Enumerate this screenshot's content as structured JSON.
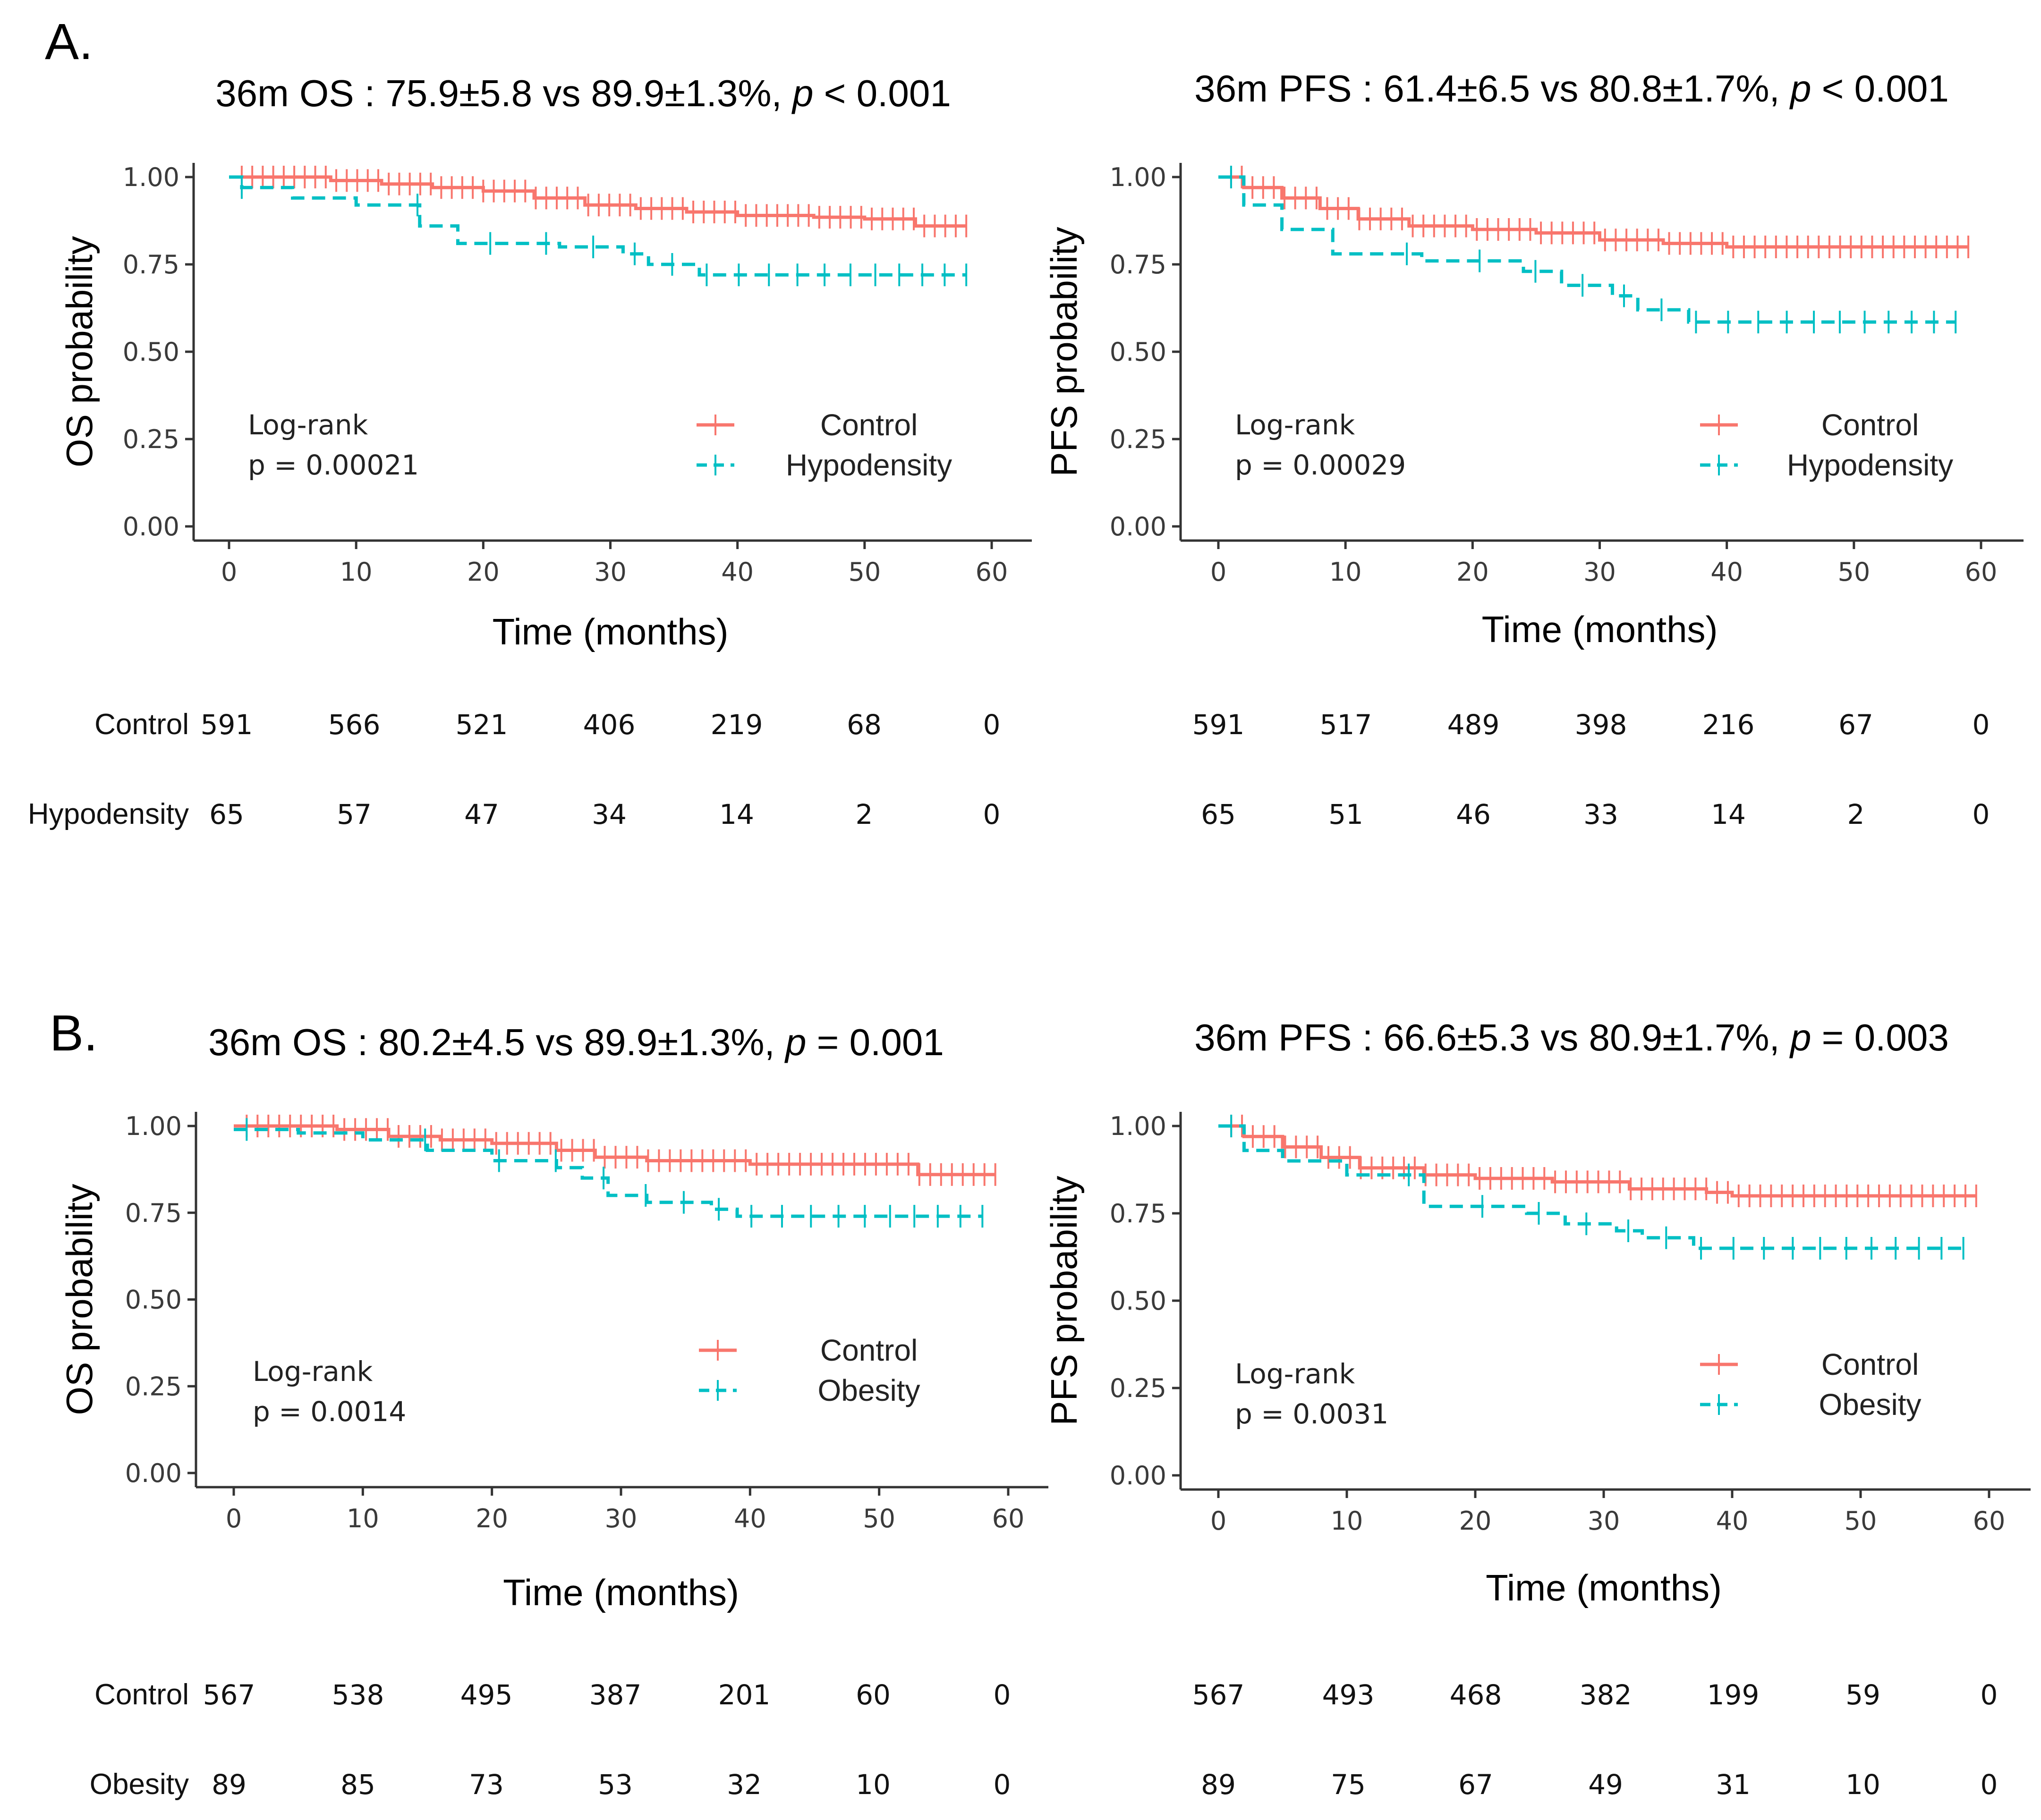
{
  "panel_labels": [
    "A.",
    "B."
  ],
  "colors": {
    "control": "#F8766D",
    "other": "#00BFC4",
    "axis": "#333333"
  },
  "chart_data": [
    {
      "type": "line",
      "subtype": "kaplan-meier",
      "title": {
        "prefix": "36m OS : 75.9±5.8 vs 89.9±1.3%, ",
        "p": "p",
        "suffix": " < 0.001"
      },
      "xlabel": "Time (months)",
      "ylabel": "OS probability",
      "xlim": [
        0,
        60
      ],
      "ylim": [
        0,
        1
      ],
      "xticks": [
        "0",
        "10",
        "20",
        "30",
        "40",
        "50",
        "60"
      ],
      "yticks": [
        "0.00",
        "0.25",
        "0.50",
        "0.75",
        "1.00"
      ],
      "logrank": {
        "label": "Log-rank",
        "p": "p = 0.00021"
      },
      "legend": [
        "Control",
        "Hypodensity"
      ],
      "series": [
        {
          "name": "Control",
          "x": [
            0,
            3,
            8,
            12,
            16,
            20,
            24,
            28,
            32,
            36,
            40,
            46,
            50,
            54,
            58
          ],
          "y": [
            1.0,
            1.0,
            0.99,
            0.98,
            0.97,
            0.96,
            0.94,
            0.92,
            0.91,
            0.9,
            0.89,
            0.885,
            0.88,
            0.86,
            0.86
          ]
        },
        {
          "name": "Hypodensity",
          "x": [
            0,
            1,
            5,
            10,
            15,
            18,
            26,
            31,
            33,
            37,
            58
          ],
          "y": [
            1.0,
            0.97,
            0.94,
            0.92,
            0.86,
            0.81,
            0.8,
            0.78,
            0.75,
            0.72,
            0.72
          ]
        }
      ],
      "risk_table": {
        "times": [
          0,
          10,
          20,
          30,
          40,
          50,
          60
        ],
        "rows": [
          {
            "label": "Control",
            "values": [
              "591",
              "566",
              "521",
              "406",
              "219",
              "68",
              "0"
            ]
          },
          {
            "label": "Hypodensity",
            "values": [
              "65",
              "57",
              "47",
              "34",
              "14",
              "2",
              "0"
            ]
          }
        ]
      }
    },
    {
      "type": "line",
      "subtype": "kaplan-meier",
      "title": {
        "prefix": "36m PFS : 61.4±6.5 vs 80.8±1.7%, ",
        "p": "p",
        "suffix": " < 0.001"
      },
      "xlabel": "Time (months)",
      "ylabel": "PFS probability",
      "xlim": [
        0,
        60
      ],
      "ylim": [
        0,
        1
      ],
      "xticks": [
        "0",
        "10",
        "20",
        "30",
        "40",
        "50",
        "60"
      ],
      "yticks": [
        "0.00",
        "0.25",
        "0.50",
        "0.75",
        "1.00"
      ],
      "logrank": {
        "label": "Log-rank",
        "p": "p = 0.00029"
      },
      "legend": [
        "Control",
        "Hypodensity"
      ],
      "series": [
        {
          "name": "Control",
          "x": [
            0,
            2,
            5,
            8,
            11,
            15,
            20,
            25,
            30,
            35,
            40,
            50,
            59
          ],
          "y": [
            1.0,
            0.97,
            0.94,
            0.91,
            0.88,
            0.86,
            0.85,
            0.84,
            0.82,
            0.81,
            0.8,
            0.8,
            0.8
          ]
        },
        {
          "name": "Hypodensity",
          "x": [
            0,
            2,
            5,
            9,
            16,
            24,
            27,
            31,
            33,
            37,
            58
          ],
          "y": [
            1.0,
            0.92,
            0.85,
            0.78,
            0.76,
            0.73,
            0.69,
            0.66,
            0.62,
            0.585,
            0.585
          ]
        }
      ],
      "risk_table": {
        "times": [
          0,
          10,
          20,
          30,
          40,
          50,
          60
        ],
        "rows": [
          {
            "label": "Control",
            "values": [
              "591",
              "517",
              "489",
              "398",
              "216",
              "67",
              "0"
            ]
          },
          {
            "label": "Hypodensity",
            "values": [
              "65",
              "51",
              "46",
              "33",
              "14",
              "2",
              "0"
            ]
          }
        ]
      }
    },
    {
      "type": "line",
      "subtype": "kaplan-meier",
      "title": {
        "prefix": "36m OS : 80.2±4.5 vs 89.9±1.3%, ",
        "p": "p",
        "suffix": " = 0.001"
      },
      "xlabel": "Time (months)",
      "ylabel": "OS probability",
      "xlim": [
        0,
        60
      ],
      "ylim": [
        0,
        1
      ],
      "xticks": [
        "0",
        "10",
        "20",
        "30",
        "40",
        "50",
        "60"
      ],
      "yticks": [
        "0.00",
        "0.25",
        "0.50",
        "0.75",
        "1.00"
      ],
      "logrank": {
        "label": "Log-rank",
        "p": "p = 0.0014"
      },
      "legend": [
        "Control",
        "Obesity"
      ],
      "series": [
        {
          "name": "Control",
          "x": [
            0,
            8,
            12,
            16,
            20,
            25,
            28,
            32,
            40,
            50,
            53,
            59
          ],
          "y": [
            1.0,
            0.99,
            0.97,
            0.96,
            0.95,
            0.93,
            0.91,
            0.9,
            0.89,
            0.89,
            0.86,
            0.86
          ]
        },
        {
          "name": "Obesity",
          "x": [
            0,
            5,
            10,
            15,
            20,
            25,
            27,
            29,
            32,
            37,
            39,
            58
          ],
          "y": [
            0.99,
            0.98,
            0.96,
            0.93,
            0.9,
            0.88,
            0.85,
            0.8,
            0.78,
            0.76,
            0.74,
            0.74
          ]
        }
      ],
      "risk_table": {
        "times": [
          0,
          10,
          20,
          30,
          40,
          50,
          60
        ],
        "rows": [
          {
            "label": "Control",
            "values": [
              "567",
              "538",
              "495",
              "387",
              "201",
              "60",
              "0"
            ]
          },
          {
            "label": "Obesity",
            "values": [
              "89",
              "85",
              "73",
              "53",
              "32",
              "10",
              "0"
            ]
          }
        ]
      }
    },
    {
      "type": "line",
      "subtype": "kaplan-meier",
      "title": {
        "prefix": "36m PFS : 66.6±5.3 vs 80.9±1.7%, ",
        "p": "p",
        "suffix": " = 0.003"
      },
      "xlabel": "Time (months)",
      "ylabel": "PFS probability",
      "xlim": [
        0,
        60
      ],
      "ylim": [
        0,
        1
      ],
      "xticks": [
        "0",
        "10",
        "20",
        "30",
        "40",
        "50",
        "60"
      ],
      "yticks": [
        "0.00",
        "0.25",
        "0.50",
        "0.75",
        "1.00"
      ],
      "logrank": {
        "label": "Log-rank",
        "p": "p = 0.0031"
      },
      "legend": [
        "Control",
        "Obesity"
      ],
      "series": [
        {
          "name": "Control",
          "x": [
            0,
            2,
            5,
            8,
            11,
            16,
            20,
            26,
            32,
            38,
            40,
            59
          ],
          "y": [
            1.0,
            0.97,
            0.94,
            0.91,
            0.88,
            0.86,
            0.85,
            0.84,
            0.82,
            0.81,
            0.8,
            0.8
          ]
        },
        {
          "name": "Obesity",
          "x": [
            0,
            2,
            5,
            10,
            16,
            24,
            27,
            31,
            33,
            37,
            58
          ],
          "y": [
            1.0,
            0.93,
            0.9,
            0.86,
            0.77,
            0.75,
            0.72,
            0.7,
            0.68,
            0.65,
            0.65
          ]
        }
      ],
      "risk_table": {
        "times": [
          0,
          10,
          20,
          30,
          40,
          50,
          60
        ],
        "rows": [
          {
            "label": "Control",
            "values": [
              "567",
              "493",
              "468",
              "382",
              "199",
              "59",
              "0"
            ]
          },
          {
            "label": "Obesity",
            "values": [
              "89",
              "75",
              "67",
              "49",
              "31",
              "10",
              "0"
            ]
          }
        ]
      }
    }
  ]
}
